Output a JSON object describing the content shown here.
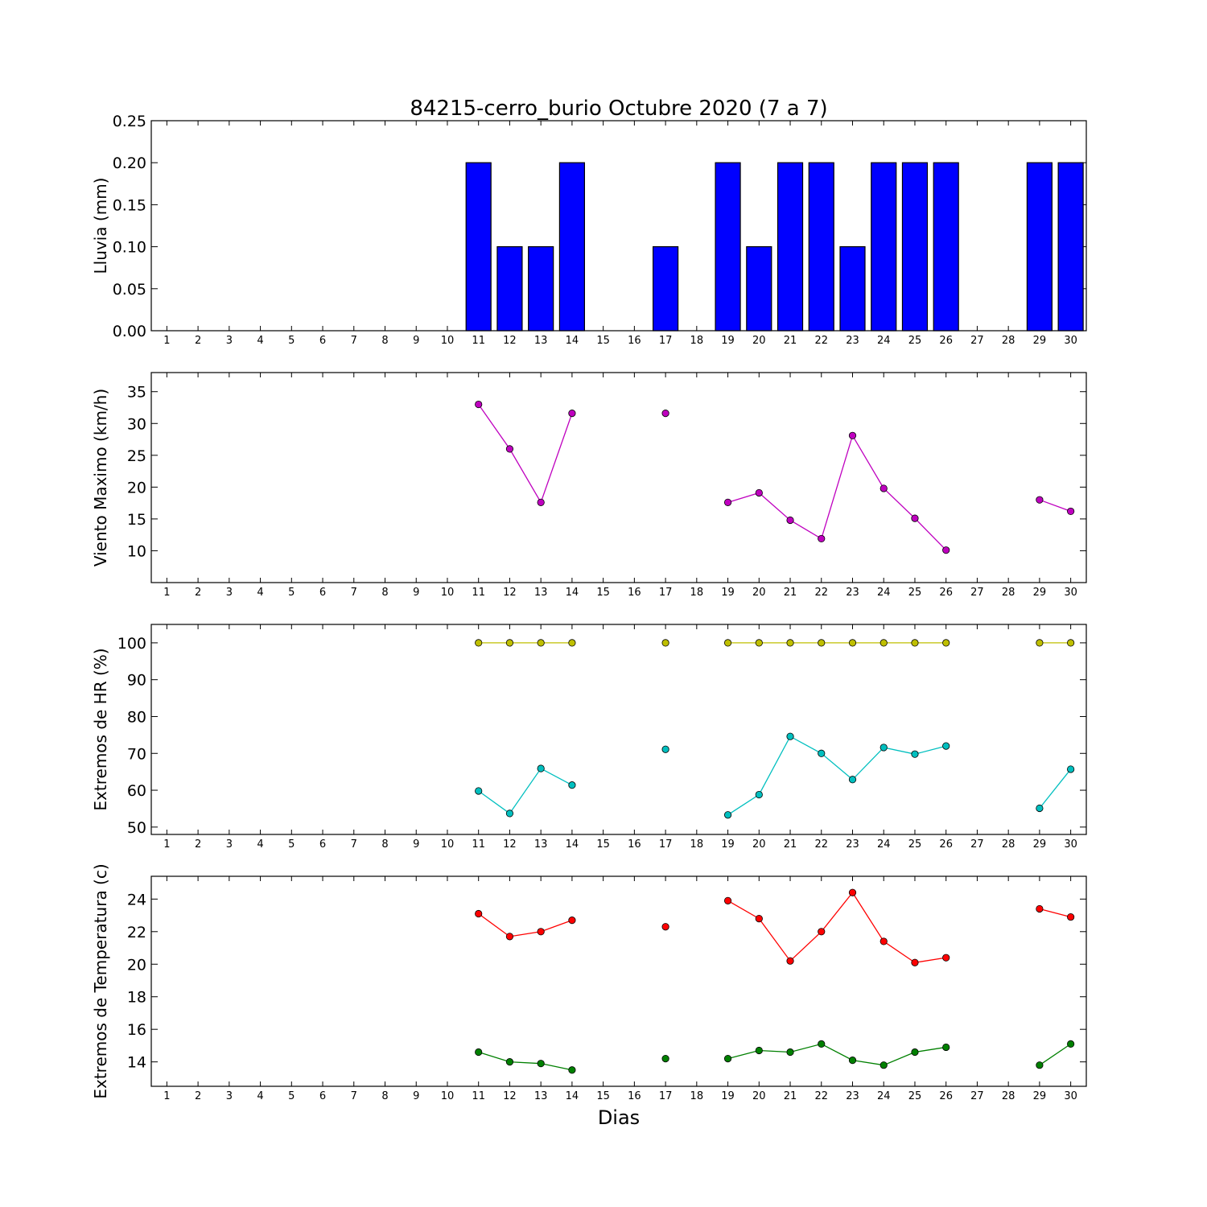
{
  "figure": {
    "title": "84215-cerro_burio Octubre 2020  (7 a 7)",
    "xlabel": "Dias"
  },
  "chart_data": [
    {
      "type": "bar",
      "ylabel": "Lluvia (mm)",
      "x": [
        1,
        2,
        3,
        4,
        5,
        6,
        7,
        8,
        9,
        10,
        11,
        12,
        13,
        14,
        15,
        16,
        17,
        18,
        19,
        20,
        21,
        22,
        23,
        24,
        25,
        26,
        27,
        28,
        29,
        30
      ],
      "ylim": [
        0,
        0.25
      ],
      "yticks": [
        "0.00",
        "0.05",
        "0.10",
        "0.15",
        "0.20",
        "0.25"
      ],
      "color": "#0000ff",
      "values": [
        0,
        0,
        0,
        0,
        0,
        0,
        0,
        0,
        0,
        0,
        0.2,
        0.1,
        0.1,
        0.2,
        0,
        0,
        0.1,
        0,
        0.2,
        0.1,
        0.2,
        0.2,
        0.1,
        0.2,
        0.2,
        0.2,
        0,
        0,
        0.2,
        0.2
      ]
    },
    {
      "type": "line",
      "ylabel": "Viento Maximo (km/h)",
      "x": [
        1,
        2,
        3,
        4,
        5,
        6,
        7,
        8,
        9,
        10,
        11,
        12,
        13,
        14,
        15,
        16,
        17,
        18,
        19,
        20,
        21,
        22,
        23,
        24,
        25,
        26,
        27,
        28,
        29,
        30
      ],
      "ylim": [
        5,
        38
      ],
      "yticks": [
        "10",
        "15",
        "20",
        "25",
        "30",
        "35"
      ],
      "series": [
        {
          "color": "#bf00bf",
          "values": [
            null,
            null,
            null,
            null,
            null,
            null,
            null,
            null,
            null,
            null,
            33.0,
            26.0,
            17.6,
            31.6,
            null,
            null,
            31.6,
            null,
            17.6,
            19.1,
            14.8,
            11.9,
            28.1,
            19.8,
            15.1,
            10.1,
            null,
            null,
            18.0,
            16.2
          ]
        }
      ]
    },
    {
      "type": "line",
      "ylabel": "Extremos de HR (%)",
      "x": [
        1,
        2,
        3,
        4,
        5,
        6,
        7,
        8,
        9,
        10,
        11,
        12,
        13,
        14,
        15,
        16,
        17,
        18,
        19,
        20,
        21,
        22,
        23,
        24,
        25,
        26,
        27,
        28,
        29,
        30
      ],
      "ylim": [
        48,
        105
      ],
      "yticks": [
        "50",
        "60",
        "70",
        "80",
        "90",
        "100"
      ],
      "series": [
        {
          "color": "#bfbf00",
          "values": [
            null,
            null,
            null,
            null,
            null,
            null,
            null,
            null,
            null,
            null,
            100,
            100,
            100,
            100,
            null,
            null,
            100,
            null,
            100,
            100,
            100,
            100,
            100,
            100,
            100,
            100,
            null,
            null,
            100,
            100
          ]
        },
        {
          "color": "#00bfbf",
          "values": [
            null,
            null,
            null,
            null,
            null,
            null,
            null,
            null,
            null,
            null,
            59.8,
            53.7,
            65.9,
            61.4,
            null,
            null,
            71.1,
            null,
            53.3,
            58.8,
            74.6,
            70.0,
            62.9,
            71.6,
            69.8,
            72.0,
            null,
            null,
            55.1,
            65.7
          ]
        }
      ]
    },
    {
      "type": "line",
      "ylabel": "Extremos de Temperatura (c)",
      "x": [
        1,
        2,
        3,
        4,
        5,
        6,
        7,
        8,
        9,
        10,
        11,
        12,
        13,
        14,
        15,
        16,
        17,
        18,
        19,
        20,
        21,
        22,
        23,
        24,
        25,
        26,
        27,
        28,
        29,
        30
      ],
      "ylim": [
        12.5,
        25.4
      ],
      "yticks": [
        "14",
        "16",
        "18",
        "20",
        "22",
        "24"
      ],
      "series": [
        {
          "color": "#ff0000",
          "values": [
            null,
            null,
            null,
            null,
            null,
            null,
            null,
            null,
            null,
            null,
            23.1,
            21.7,
            22.0,
            22.7,
            null,
            null,
            22.3,
            null,
            23.9,
            22.8,
            20.2,
            22.0,
            24.4,
            21.4,
            20.1,
            20.4,
            null,
            null,
            23.4,
            22.9
          ]
        },
        {
          "color": "#008000",
          "values": [
            null,
            null,
            null,
            null,
            null,
            null,
            null,
            null,
            null,
            null,
            14.6,
            14.0,
            13.9,
            13.5,
            null,
            null,
            14.2,
            null,
            14.2,
            14.7,
            14.6,
            15.1,
            14.1,
            13.8,
            14.6,
            14.9,
            null,
            null,
            13.8,
            15.1
          ]
        }
      ]
    }
  ]
}
